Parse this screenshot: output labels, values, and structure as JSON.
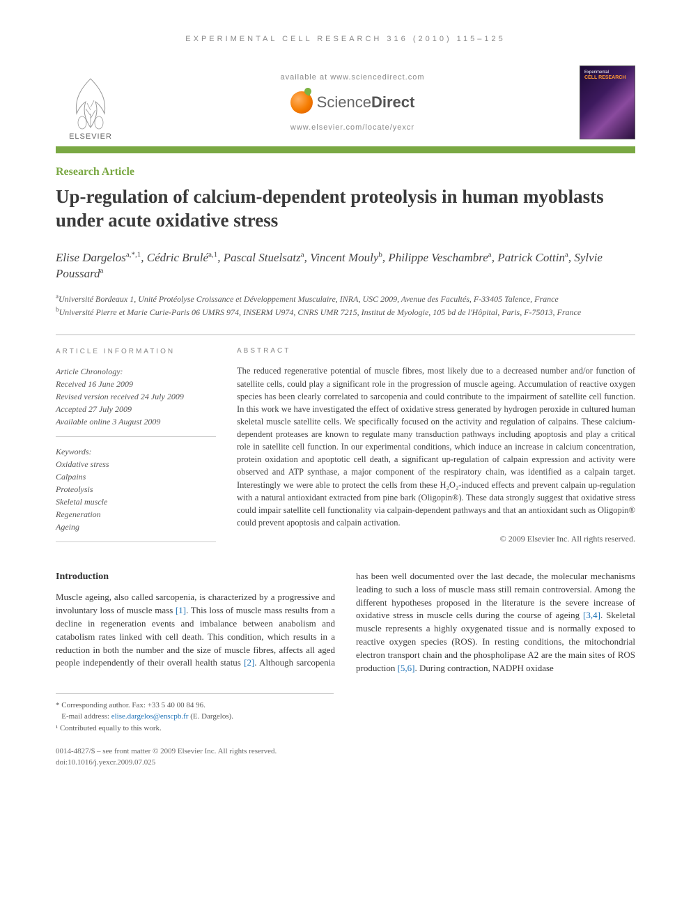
{
  "running_head": "EXPERIMENTAL CELL RESEARCH 316 (2010) 115–125",
  "header": {
    "elsevier_label": "ELSEVIER",
    "available_at": "available at www.sciencedirect.com",
    "sd_name_light": "Science",
    "sd_name_bold": "Direct",
    "locate": "www.elsevier.com/locate/yexcr",
    "cover_line1": "Experimental",
    "cover_line2": "CELL RESEARCH"
  },
  "colors": {
    "accent_green": "#7aa843",
    "link_blue": "#1a6fb5",
    "text": "#3a3a3a",
    "muted": "#888"
  },
  "article_type": "Research Article",
  "title": "Up-regulation of calcium-dependent proteolysis in human myoblasts under acute oxidative stress",
  "authors_html": "Elise Dargelos<sup>a,*,1</sup>, Cédric Brulé<sup>a,1</sup>, Pascal Stuelsatz<sup>a</sup>, Vincent Mouly<sup>b</sup>, Philippe Veschambre<sup>a</sup>, Patrick Cottin<sup>a</sup>, Sylvie Poussard<sup>a</sup>",
  "affiliations": {
    "a": "Université Bordeaux 1, Unité Protéolyse Croissance et Développement Musculaire, INRA, USC 2009, Avenue des Facultés, F-33405 Talence, France",
    "b": "Université Pierre et Marie Curie-Paris 06 UMRS 974, INSERM U974, CNRS UMR 7215, Institut de Myologie, 105 bd de l'Hôpital, Paris, F-75013, France"
  },
  "article_info": {
    "head": "ARTICLE INFORMATION",
    "chronology_label": "Article Chronology:",
    "received": "Received 16 June 2009",
    "revised": "Revised version received 24 July 2009",
    "accepted": "Accepted 27 July 2009",
    "online": "Available online 3 August 2009",
    "keywords_label": "Keywords:",
    "keywords": [
      "Oxidative stress",
      "Calpains",
      "Proteolysis",
      "Skeletal muscle",
      "Regeneration",
      "Ageing"
    ]
  },
  "abstract": {
    "head": "ABSTRACT",
    "text": "The reduced regenerative potential of muscle fibres, most likely due to a decreased number and/or function of satellite cells, could play a significant role in the progression of muscle ageing. Accumulation of reactive oxygen species has been clearly correlated to sarcopenia and could contribute to the impairment of satellite cell function. In this work we have investigated the effect of oxidative stress generated by hydrogen peroxide in cultured human skeletal muscle satellite cells. We specifically focused on the activity and regulation of calpains. These calcium-dependent proteases are known to regulate many transduction pathways including apoptosis and play a critical role in satellite cell function. In our experimental conditions, which induce an increase in calcium concentration, protein oxidation and apoptotic cell death, a significant up-regulation of calpain expression and activity were observed and ATP synthase, a major component of the respiratory chain, was identified as a calpain target. Interestingly we were able to protect the cells from these H₂O₂-induced effects and prevent calpain up-regulation with a natural antioxidant extracted from pine bark (Oligopin®). These data strongly suggest that oxidative stress could impair satellite cell functionality via calpain-dependent pathways and that an antioxidant such as Oligopin® could prevent apoptosis and calpain activation.",
    "copyright": "© 2009 Elsevier Inc. All rights reserved."
  },
  "intro": {
    "head": "Introduction",
    "para1_pre": "Muscle ageing, also called sarcopenia, is characterized by a progressive and involuntary loss of muscle mass ",
    "ref1": "[1]",
    "para1_mid": ". This loss of muscle mass results from a decline in regeneration events and imbalance between anabolism and catabolism rates linked with cell death. This condition, which results in a reduction in both the number and the size of muscle fibres, affects all aged people independently of their overall health status ",
    "ref2": "[2]",
    "para1_post": ". Although sarcopenia",
    "para2_pre": "has been well documented over the last decade, the molecular mechanisms leading to such a loss of muscle mass still remain controversial. Among the different hypotheses proposed in the literature is the severe increase of oxidative stress in muscle cells during the course of ageing ",
    "ref34": "[3,4]",
    "para2_mid": ". Skeletal muscle represents a highly oxygenated tissue and is normally exposed to reactive oxygen species (ROS). In resting conditions, the mitochondrial electron transport chain and the phospholipase A2 are the main sites of ROS production ",
    "ref56": "[5,6]",
    "para2_post": ". During contraction, NADPH oxidase"
  },
  "footnotes": {
    "corr_label": "* Corresponding author.",
    "fax": " Fax: +33 5 40 00 84 96.",
    "email_label": "E-mail address: ",
    "email": "elise.dargelos@enscpb.fr",
    "email_paren": " (E. Dargelos).",
    "contrib": "¹ Contributed equally to this work."
  },
  "page_foot": {
    "line1": "0014-4827/$ – see front matter © 2009 Elsevier Inc. All rights reserved.",
    "line2": "doi:10.1016/j.yexcr.2009.07.025"
  }
}
